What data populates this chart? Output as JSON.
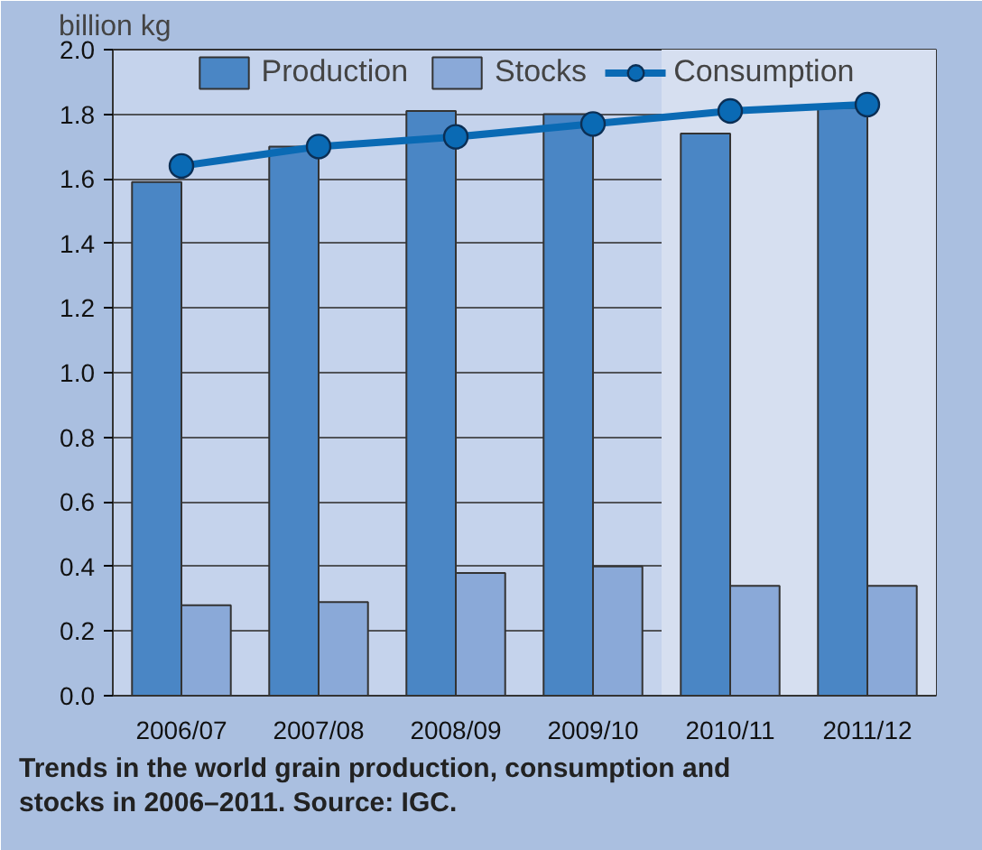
{
  "chart_data": {
    "type": "bar",
    "ylabel": "billion kg",
    "categories": [
      "2006/07",
      "2007/08",
      "2008/09",
      "2009/10",
      "2010/11",
      "2011/12"
    ],
    "series": [
      {
        "name": "Production",
        "color": "#4a86c5",
        "values": [
          1.59,
          1.7,
          1.81,
          1.8,
          1.74,
          1.82
        ]
      },
      {
        "name": "Stocks",
        "color": "#8aa9d8",
        "values": [
          0.28,
          0.29,
          0.38,
          0.4,
          0.34,
          0.34
        ]
      },
      {
        "name": "Consumption",
        "type": "line",
        "color": "#0a6ab4",
        "marker": "circle",
        "values": [
          1.64,
          1.7,
          1.73,
          1.77,
          1.81,
          1.83
        ]
      }
    ],
    "ylim": [
      0,
      2.0
    ],
    "yticks": [
      {
        "value": 0,
        "label": "0.0"
      },
      {
        "value": 0.2,
        "label": "0.2"
      },
      {
        "value": 0.4,
        "label": "0.4"
      },
      {
        "value": 0.6,
        "label": "0.6"
      },
      {
        "value": 0.8,
        "label": "0.8"
      },
      {
        "value": 1.0,
        "label": "1.0"
      },
      {
        "value": 1.2,
        "label": "1.2"
      },
      {
        "value": 1.4,
        "label": "1.4"
      },
      {
        "value": 1.6,
        "label": "1.6"
      },
      {
        "value": 1.8,
        "label": "1.8"
      },
      {
        "value": 2.0,
        "label": "2.0"
      }
    ],
    "grid": "y",
    "legend": "top",
    "bands": [
      {
        "axis": "x",
        "from": "2010/11",
        "to": "2011/12",
        "color": "#d6dff0"
      }
    ],
    "annotations": [
      "Trends in the world grain production, consumption and stocks in 2006–2011. Source: IGC."
    ]
  }
}
